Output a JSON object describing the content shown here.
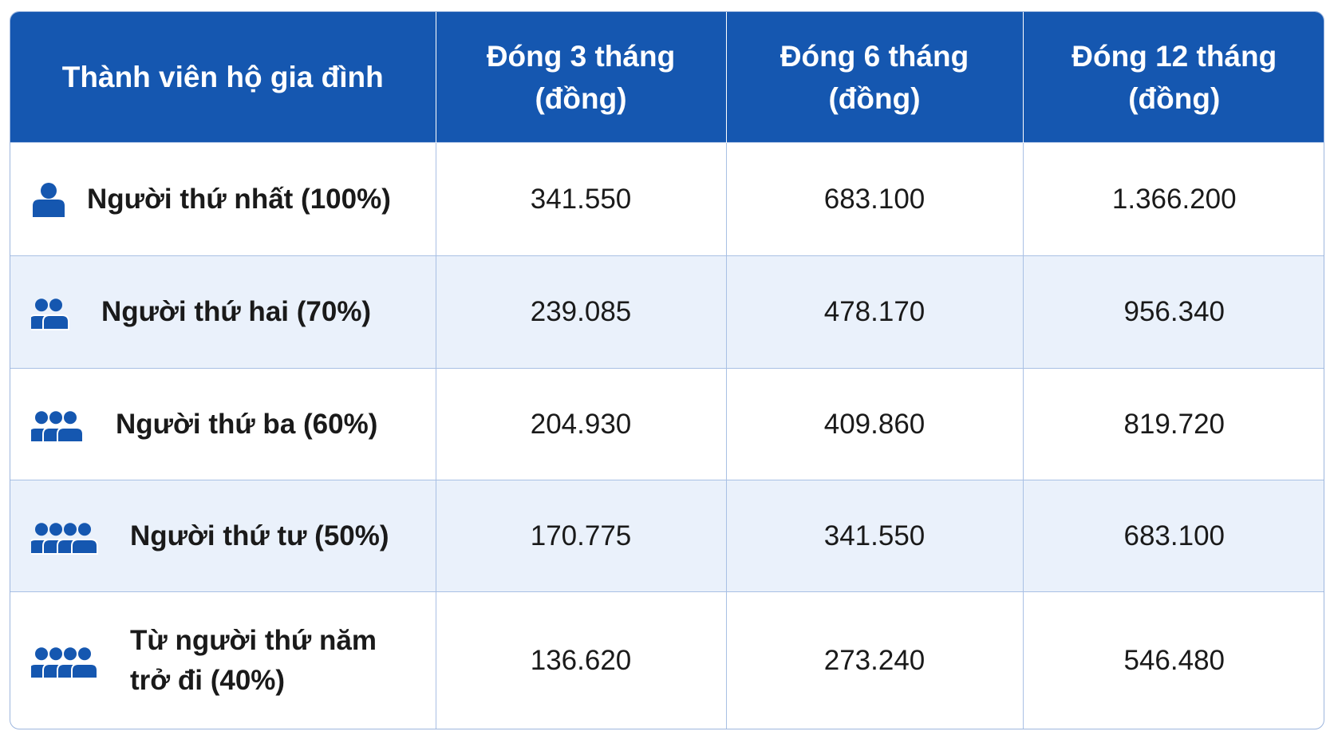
{
  "table": {
    "header": [
      {
        "lines": [
          "Thành viên hộ gia đình"
        ]
      },
      {
        "lines": [
          "Đóng 3 tháng",
          "(đồng)"
        ]
      },
      {
        "lines": [
          "Đóng 6 tháng",
          "(đồng)"
        ]
      },
      {
        "lines": [
          "Đóng 12 tháng",
          "(đồng)"
        ]
      }
    ],
    "rows": [
      [
        "Người thứ nhất (100%)",
        "341.550",
        "683.100",
        "1.366.200"
      ],
      [
        "Người thứ hai (70%)",
        "239.085",
        "478.170",
        "956.340"
      ],
      [
        "Người thứ ba (60%)",
        "204.930",
        "409.860",
        "819.720"
      ],
      [
        "Người thứ tư (50%)",
        "170.775",
        "341.550",
        "683.100"
      ],
      [
        "Từ người thứ năm trở đi (40%)",
        "136.620",
        "273.240",
        "546.480"
      ]
    ]
  }
}
